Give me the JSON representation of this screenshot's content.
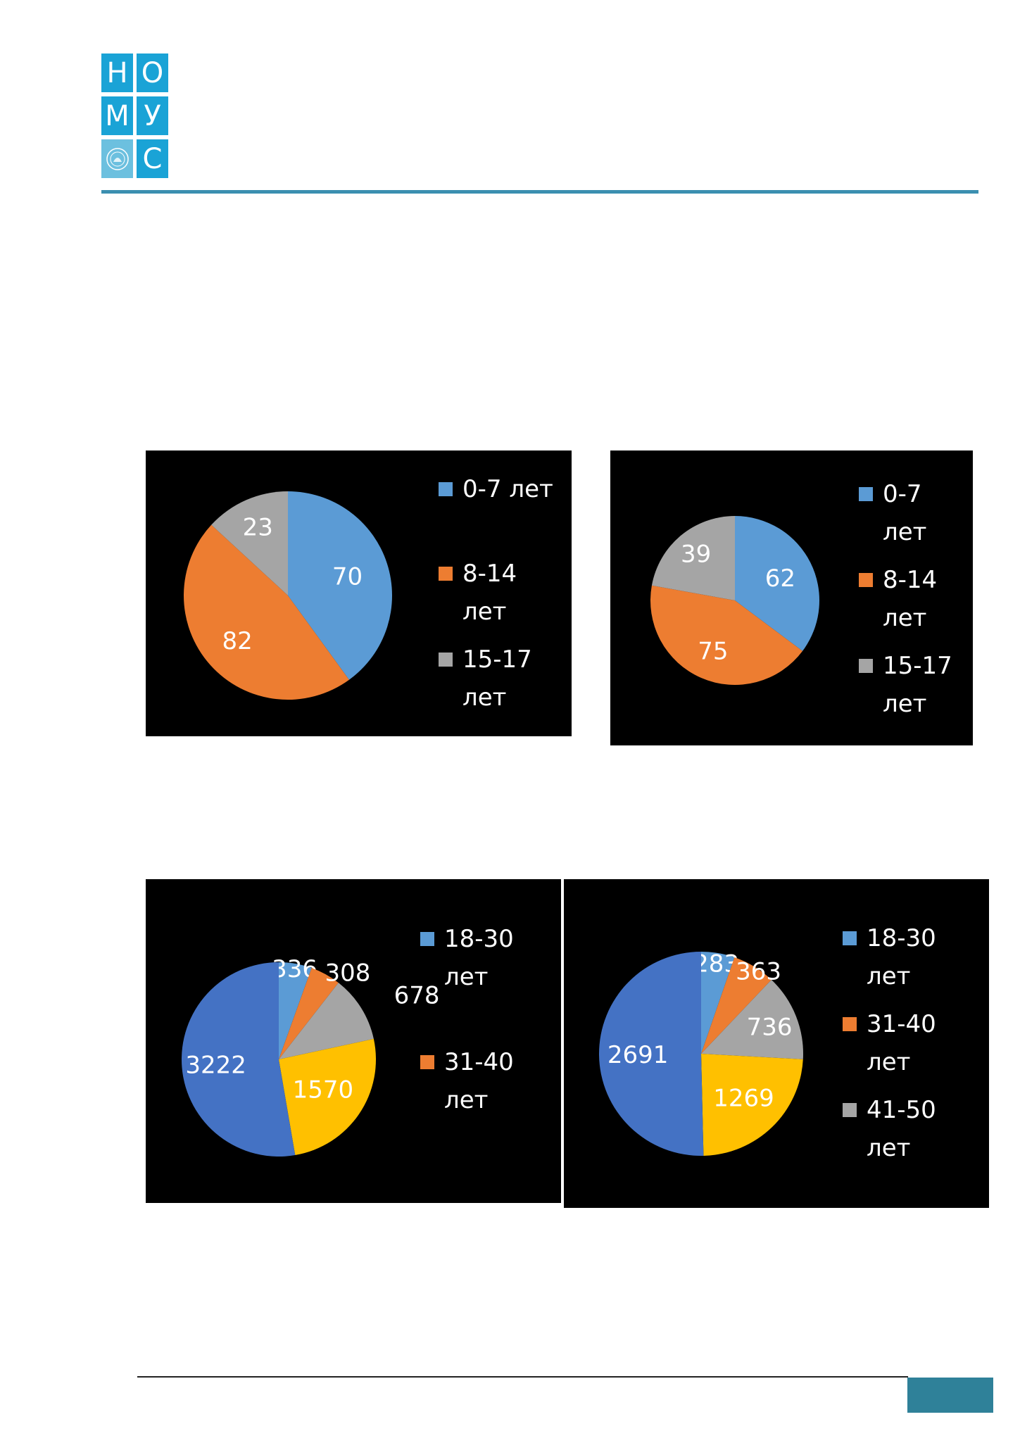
{
  "logo": {
    "letters": [
      "Н",
      "О",
      "М",
      "У",
      "",
      "С"
    ],
    "emblem_icon": "emblem-seal-icon",
    "brand_color": "#1aa3d6"
  },
  "colors": {
    "header_rule": "#3b8fb0",
    "page_tab": "#2f8199"
  },
  "chart_data": [
    {
      "type": "pie",
      "slices": [
        {
          "label": "0-7 лет",
          "value": 70,
          "color": "#5b9bd5"
        },
        {
          "label": "8-14 лет",
          "value": 82,
          "color": "#ed7d31"
        },
        {
          "label": "15-17 лет",
          "value": 23,
          "color": "#a5a5a5"
        }
      ],
      "legend": [
        {
          "lines": [
            "0-7 лет"
          ],
          "color": "#5b9bd5"
        },
        {
          "lines": [
            "8-14",
            "лет"
          ],
          "color": "#ed7d31"
        },
        {
          "lines": [
            "15-17",
            "лет"
          ],
          "color": "#a5a5a5"
        }
      ],
      "legend_position": "right",
      "background": "#000000"
    },
    {
      "type": "pie",
      "slices": [
        {
          "label": "0-7 лет",
          "value": 62,
          "color": "#5b9bd5"
        },
        {
          "label": "8-14 лет",
          "value": 75,
          "color": "#ed7d31"
        },
        {
          "label": "15-17 лет",
          "value": 39,
          "color": "#a5a5a5"
        }
      ],
      "legend": [
        {
          "lines": [
            "0-7",
            "лет"
          ],
          "color": "#5b9bd5"
        },
        {
          "lines": [
            "8-14",
            "лет"
          ],
          "color": "#ed7d31"
        },
        {
          "lines": [
            "15-17",
            "лет"
          ],
          "color": "#a5a5a5"
        }
      ],
      "legend_position": "right",
      "background": "#000000"
    },
    {
      "type": "pie",
      "slices": [
        {
          "label": "18-30 лет",
          "value": 336,
          "color": "#5b9bd5"
        },
        {
          "label": "31-40 лет",
          "value": 308,
          "color": "#ed7d31"
        },
        {
          "label": "41-50 лет",
          "value": 678,
          "color": "#a5a5a5"
        },
        {
          "label": "",
          "value": 1570,
          "color": "#ffc000"
        },
        {
          "label": "",
          "value": 3222,
          "color": "#4472c4"
        }
      ],
      "legend": [
        {
          "lines": [
            "18-30",
            "лет"
          ],
          "color": "#5b9bd5"
        },
        {
          "lines": [
            "31-40",
            "лет"
          ],
          "color": "#ed7d31"
        }
      ],
      "legend_position": "right",
      "background": "#000000"
    },
    {
      "type": "pie",
      "slices": [
        {
          "label": "18-30 лет",
          "value": 283,
          "color": "#5b9bd5"
        },
        {
          "label": "31-40 лет",
          "value": 363,
          "color": "#ed7d31"
        },
        {
          "label": "41-50 лет",
          "value": 736,
          "color": "#a5a5a5"
        },
        {
          "label": "",
          "value": 1269,
          "color": "#ffc000"
        },
        {
          "label": "",
          "value": 2691,
          "color": "#4472c4"
        }
      ],
      "legend": [
        {
          "lines": [
            "18-30",
            "лет"
          ],
          "color": "#5b9bd5"
        },
        {
          "lines": [
            "31-40",
            "лет"
          ],
          "color": "#ed7d31"
        },
        {
          "lines": [
            "41-50",
            "лет"
          ],
          "color": "#a5a5a5"
        }
      ],
      "legend_position": "right",
      "background": "#000000"
    }
  ]
}
